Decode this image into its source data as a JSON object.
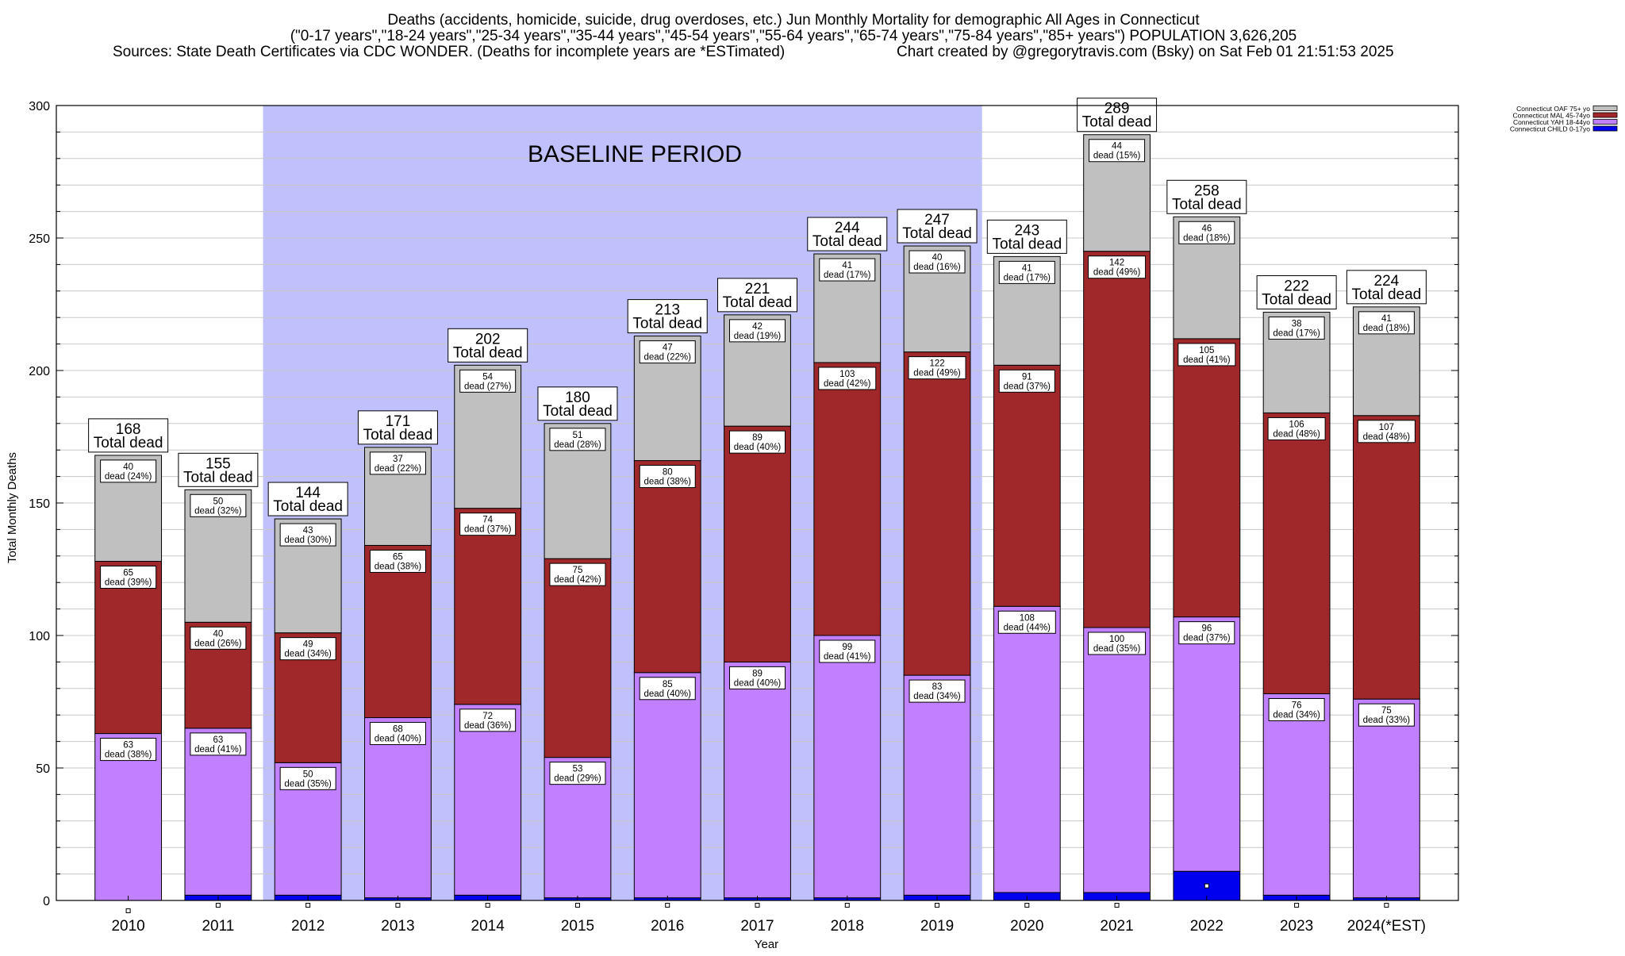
{
  "chart_data": {
    "type": "bar",
    "stacked": true,
    "title": "Deaths (accidents, homicide, suicide, drug overdoses, etc.) Jun Monthly Mortality for demographic All Ages in Connecticut",
    "subtitle": "(\"0-17 years\",\"18-24 years\",\"25-34 years\",\"35-44 years\",\"45-54 years\",\"55-64 years\",\"65-74 years\",\"75-84 years\",\"85+ years\") POPULATION 3,626,205",
    "sources": "Sources: State Death Certificates via CDC WONDER. (Deaths for incomplete years are *ESTimated)",
    "credit": "Chart created by @gregorytravis.com (Bsky) on Sat Feb 01 21:51:53 2025",
    "xlabel": "Year",
    "ylabel": "Total Monthly Deaths",
    "ylim": [
      0,
      300
    ],
    "yticks": [
      0,
      50,
      100,
      150,
      200,
      250,
      300
    ],
    "grid": true,
    "legend_position": "top-right",
    "baseline": {
      "label": "BASELINE PERIOD",
      "from": "2012",
      "to": "2019",
      "color": "#c0c0fc"
    },
    "categories": [
      "2010",
      "2011",
      "2012",
      "2013",
      "2014",
      "2015",
      "2016",
      "2017",
      "2018",
      "2019",
      "2020",
      "2021",
      "2022",
      "2023",
      "2024(*EST)"
    ],
    "totals": [
      168,
      155,
      144,
      171,
      202,
      180,
      213,
      221,
      244,
      247,
      243,
      289,
      258,
      222,
      224
    ],
    "total_suffix": "Total dead",
    "dead_word": "dead",
    "series": [
      {
        "name": "Connecticut CHILD 0-17yo",
        "color": "#0000ee",
        "values": [
          0,
          2,
          2,
          1,
          2,
          1,
          1,
          1,
          1,
          2,
          3,
          3,
          11,
          2,
          1
        ],
        "labels": [
          null,
          null,
          null,
          null,
          null,
          null,
          null,
          null,
          null,
          null,
          null,
          null,
          null,
          null,
          null
        ]
      },
      {
        "name": "Connecticut YAH 18-44yo",
        "color": "#c080ff",
        "values": [
          63,
          63,
          50,
          68,
          72,
          53,
          85,
          89,
          99,
          83,
          108,
          100,
          96,
          76,
          75
        ],
        "labels": [
          "63|(38%)",
          "63|(41%)",
          "50|(35%)",
          "68|(40%)",
          "72|(36%)",
          "53|(29%)",
          "85|(40%)",
          "89|(40%)",
          "99|(41%)",
          "83|(34%)",
          "108|(44%)",
          "100|(35%)",
          "96|(37%)",
          "76|(34%)",
          "75|(33%)"
        ]
      },
      {
        "name": "Connecticut MAL 45-74yo",
        "color": "#a0282a",
        "values": [
          65,
          40,
          49,
          65,
          74,
          75,
          80,
          89,
          103,
          122,
          91,
          142,
          105,
          106,
          107
        ],
        "labels": [
          "65|(39%)",
          "40|(26%)",
          "49|(34%)",
          "65|(38%)",
          "74|(37%)",
          "75|(42%)",
          "80|(38%)",
          "89|(40%)",
          "103|(42%)",
          "122|(49%)",
          "91|(37%)",
          "142|(49%)",
          "105|(41%)",
          "106|(48%)",
          "107|(48%)"
        ]
      },
      {
        "name": "Connecticut OAF 75+ yo",
        "color": "#c0c0c0",
        "values": [
          40,
          50,
          43,
          37,
          54,
          51,
          47,
          42,
          41,
          40,
          41,
          44,
          46,
          38,
          41
        ],
        "labels": [
          "40|(24%)",
          "50|(32%)",
          "43|(30%)",
          "37|(22%)",
          "54|(27%)",
          "51|(28%)",
          "47|(22%)",
          "42|(19%)",
          "41|(17%)",
          "40|(16%)",
          "41|(17%)",
          "44|(15%)",
          "46|(18%)",
          "38|(17%)",
          "41|(18%)"
        ]
      }
    ]
  }
}
